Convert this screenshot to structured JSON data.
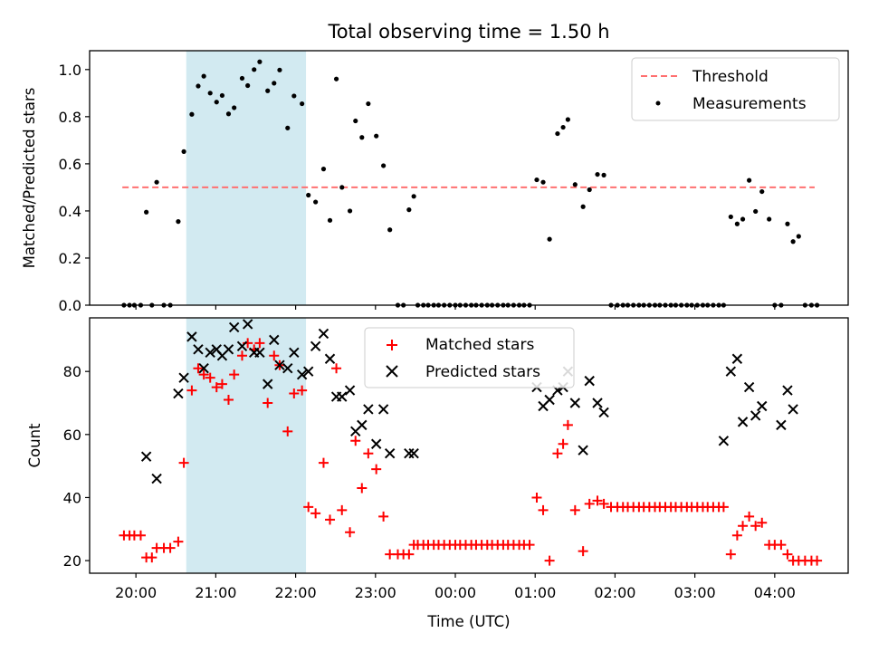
{
  "figure": {
    "title": "Total observing time = 1.50 h",
    "xlabel": "Time (UTC)",
    "xticks": [
      "20:00",
      "21:00",
      "22:00",
      "23:00",
      "00:00",
      "01:00",
      "02:00",
      "03:00",
      "04:00"
    ],
    "shaded_span": {
      "start_h": 20.63,
      "end_h": 22.13,
      "color": "#add8e6"
    }
  },
  "chart_data": [
    {
      "type": "scatter",
      "panel": "top",
      "ylabel": "Matched/Predicted stars",
      "x_unit": "hours since 00:00 UTC of the first night",
      "xlim": [
        19.42,
        28.92
      ],
      "ylim": [
        0,
        1.08
      ],
      "yticks": [
        "0.0",
        "0.2",
        "0.4",
        "0.6",
        "0.8",
        "1.0"
      ],
      "legend": {
        "position": "upper right",
        "entries": [
          "Threshold",
          "Measurements"
        ]
      },
      "threshold": {
        "name": "Threshold",
        "value": 0.5,
        "x_range": [
          19.83,
          28.5
        ],
        "color": "#ff7070"
      },
      "series": [
        {
          "name": "Measurements",
          "color": "#000000",
          "x": [
            19.85,
            19.92,
            19.98,
            20.06,
            20.13,
            20.2,
            20.26,
            20.35,
            20.43,
            20.53,
            20.6,
            20.7,
            20.78,
            20.85,
            20.93,
            21.01,
            21.08,
            21.16,
            21.23,
            21.33,
            21.4,
            21.48,
            21.55,
            21.65,
            21.73,
            21.8,
            21.9,
            21.98,
            22.08,
            22.16,
            22.25,
            22.35,
            22.43,
            22.51,
            22.58,
            22.68,
            22.75,
            22.83,
            22.91,
            23.01,
            23.1,
            23.18,
            23.28,
            23.35,
            23.42,
            23.48,
            23.53,
            23.6,
            23.66,
            23.73,
            23.79,
            23.86,
            23.93,
            24.0,
            24.06,
            24.13,
            24.2,
            24.26,
            24.33,
            24.4,
            24.46,
            24.53,
            24.6,
            24.66,
            24.73,
            24.8,
            24.86,
            24.93,
            25.02,
            25.1,
            25.18,
            25.28,
            25.35,
            25.41,
            25.5,
            25.6,
            25.68,
            25.78,
            25.86,
            25.95,
            26.03,
            26.1,
            26.16,
            26.23,
            26.3,
            26.36,
            26.43,
            26.5,
            26.56,
            26.63,
            26.7,
            26.76,
            26.83,
            26.9,
            26.96,
            27.03,
            27.1,
            27.16,
            27.23,
            27.3,
            27.36,
            27.45,
            27.53,
            27.6,
            27.68,
            27.76,
            27.84,
            27.93,
            28.0,
            28.08,
            28.16,
            28.23,
            28.3,
            28.38,
            28.46,
            28.53
          ],
          "y": [
            0.0,
            0.0,
            0.0,
            0.0,
            0.395,
            0.0,
            0.522,
            0.0,
            0.0,
            0.355,
            0.652,
            0.81,
            0.93,
            0.972,
            0.9,
            0.862,
            0.89,
            0.812,
            0.838,
            0.963,
            0.932,
            1.0,
            1.033,
            0.91,
            0.942,
            0.998,
            0.752,
            0.888,
            0.855,
            0.467,
            0.438,
            0.578,
            0.36,
            0.96,
            0.5,
            0.4,
            0.782,
            0.712,
            0.855,
            0.718,
            0.592,
            0.32,
            0.0,
            0.0,
            0.405,
            0.462,
            0.0,
            0.0,
            0.0,
            0.0,
            0.0,
            0.0,
            0.0,
            0.0,
            0.0,
            0.0,
            0.0,
            0.0,
            0.0,
            0.0,
            0.0,
            0.0,
            0.0,
            0.0,
            0.0,
            0.0,
            0.0,
            0.0,
            0.532,
            0.522,
            0.28,
            0.728,
            0.755,
            0.788,
            0.512,
            0.418,
            0.49,
            0.555,
            0.552,
            0.0,
            0.0,
            0.0,
            0.0,
            0.0,
            0.0,
            0.0,
            0.0,
            0.0,
            0.0,
            0.0,
            0.0,
            0.0,
            0.0,
            0.0,
            0.0,
            0.0,
            0.0,
            0.0,
            0.0,
            0.0,
            0.0,
            0.375,
            0.345,
            0.365,
            0.53,
            0.398,
            0.482,
            0.365,
            0.0,
            0.0,
            0.345,
            0.27,
            0.292,
            0.0,
            0.0,
            0.0
          ]
        }
      ]
    },
    {
      "type": "scatter",
      "panel": "bottom",
      "ylabel": "Count",
      "x_unit": "hours since 00:00 UTC of the first night",
      "xlim": [
        19.42,
        28.92
      ],
      "ylim": [
        16,
        97
      ],
      "yticks": [
        "20",
        "40",
        "60",
        "80"
      ],
      "legend": {
        "position": "upper center",
        "entries": [
          "Matched stars",
          "Predicted stars"
        ]
      },
      "series": [
        {
          "name": "Matched stars",
          "marker": "plus",
          "color": "#ff0000",
          "x": [
            19.85,
            19.92,
            19.98,
            20.06,
            20.13,
            20.2,
            20.26,
            20.35,
            20.43,
            20.53,
            20.6,
            20.7,
            20.78,
            20.85,
            20.93,
            21.01,
            21.08,
            21.16,
            21.23,
            21.33,
            21.4,
            21.48,
            21.55,
            21.65,
            21.73,
            21.8,
            21.9,
            21.98,
            22.08,
            22.16,
            22.25,
            22.35,
            22.43,
            22.51,
            22.58,
            22.68,
            22.75,
            22.83,
            22.91,
            23.01,
            23.1,
            23.18,
            23.28,
            23.35,
            23.42,
            23.48,
            23.53,
            23.6,
            23.66,
            23.73,
            23.79,
            23.86,
            23.93,
            24.0,
            24.06,
            24.13,
            24.2,
            24.26,
            24.33,
            24.4,
            24.46,
            24.53,
            24.6,
            24.66,
            24.73,
            24.8,
            24.86,
            24.93,
            25.02,
            25.1,
            25.18,
            25.28,
            25.35,
            25.41,
            25.5,
            25.6,
            25.68,
            25.78,
            25.86,
            25.95,
            26.03,
            26.1,
            26.16,
            26.23,
            26.3,
            26.36,
            26.43,
            26.5,
            26.56,
            26.63,
            26.7,
            26.76,
            26.83,
            26.9,
            26.96,
            27.03,
            27.1,
            27.16,
            27.23,
            27.3,
            27.36,
            27.45,
            27.53,
            27.6,
            27.68,
            27.76,
            27.84,
            27.93,
            28.0,
            28.08,
            28.16,
            28.23,
            28.3,
            28.38,
            28.46,
            28.53
          ],
          "y": [
            28,
            28,
            28,
            28,
            21,
            21,
            24,
            24,
            24,
            26,
            51,
            74,
            81,
            79,
            78,
            75,
            76,
            71,
            79,
            85,
            89,
            87,
            89,
            70,
            85,
            82,
            61,
            73,
            74,
            37,
            35,
            51,
            33,
            81,
            36,
            29,
            58,
            43,
            54,
            49,
            34,
            22,
            22,
            22,
            22,
            25,
            25,
            25,
            25,
            25,
            25,
            25,
            25,
            25,
            25,
            25,
            25,
            25,
            25,
            25,
            25,
            25,
            25,
            25,
            25,
            25,
            25,
            25,
            40,
            36,
            20,
            54,
            57,
            63,
            36,
            23,
            38,
            39,
            38,
            37,
            37,
            37,
            37,
            37,
            37,
            37,
            37,
            37,
            37,
            37,
            37,
            37,
            37,
            37,
            37,
            37,
            37,
            37,
            37,
            37,
            37,
            22,
            28,
            31,
            34,
            31,
            32,
            25,
            25,
            25,
            22,
            20,
            20,
            20,
            20,
            20
          ]
        },
        {
          "name": "Predicted stars",
          "marker": "x",
          "color": "#000000",
          "x": [
            20.13,
            20.26,
            20.53,
            20.6,
            20.7,
            20.78,
            20.85,
            20.93,
            21.01,
            21.08,
            21.16,
            21.23,
            21.33,
            21.4,
            21.48,
            21.55,
            21.65,
            21.73,
            21.8,
            21.9,
            21.98,
            22.08,
            22.16,
            22.25,
            22.35,
            22.43,
            22.51,
            22.58,
            22.68,
            22.75,
            22.83,
            22.91,
            23.01,
            23.1,
            23.18,
            23.42,
            23.48,
            25.02,
            25.1,
            25.18,
            25.28,
            25.35,
            25.41,
            25.5,
            25.6,
            25.68,
            25.78,
            25.86,
            27.36,
            27.45,
            27.53,
            27.6,
            27.68,
            27.76,
            27.84,
            28.08,
            28.16,
            28.23
          ],
          "y": [
            53,
            46,
            73,
            78,
            91,
            87,
            81,
            86,
            87,
            85,
            87,
            94,
            88,
            95,
            86,
            86,
            76,
            90,
            82,
            81,
            86,
            79,
            80,
            88,
            92,
            84,
            72,
            72,
            74,
            61,
            63,
            68,
            57,
            68,
            54,
            54,
            54,
            75,
            69,
            71,
            74,
            75,
            80,
            70,
            55,
            77,
            70,
            67,
            58,
            80,
            84,
            64,
            75,
            66,
            69,
            63,
            74,
            68
          ]
        }
      ]
    }
  ]
}
